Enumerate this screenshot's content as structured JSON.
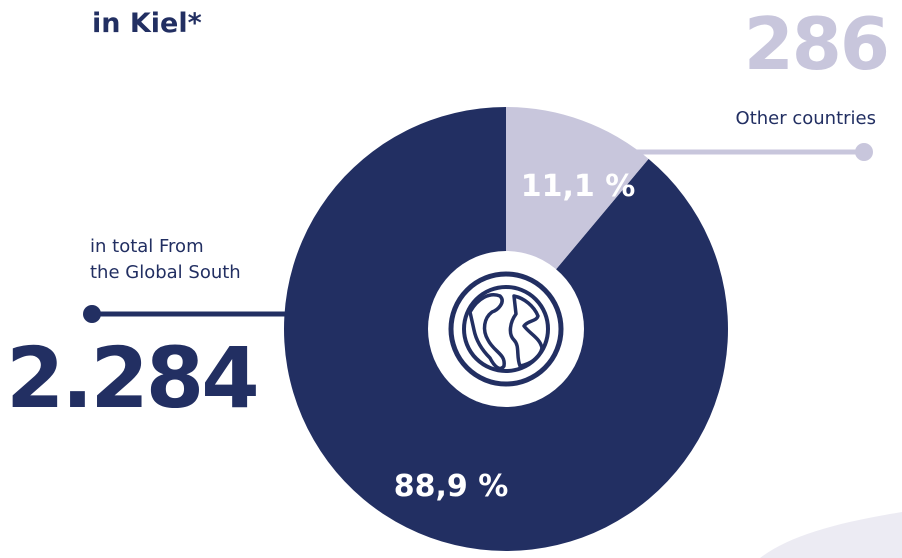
{
  "header": {
    "title": "in Kiel*"
  },
  "chart_data": {
    "type": "pie",
    "title": "",
    "slices": [
      {
        "label": "in total From the Global South",
        "count": "2.284",
        "percent_label": "88,9 %",
        "value": 88.9,
        "color": "#222f62"
      },
      {
        "label": "Other countries",
        "count": "286",
        "percent_label": "11,1 %",
        "value": 11.1,
        "color": "#c8c6dc"
      }
    ],
    "center_icon": "globe-icon"
  },
  "labels": {
    "other": {
      "number": "286",
      "text": "Other countries"
    },
    "south": {
      "number": "2.284",
      "line1": "in total From",
      "line2": "the Global South"
    }
  }
}
